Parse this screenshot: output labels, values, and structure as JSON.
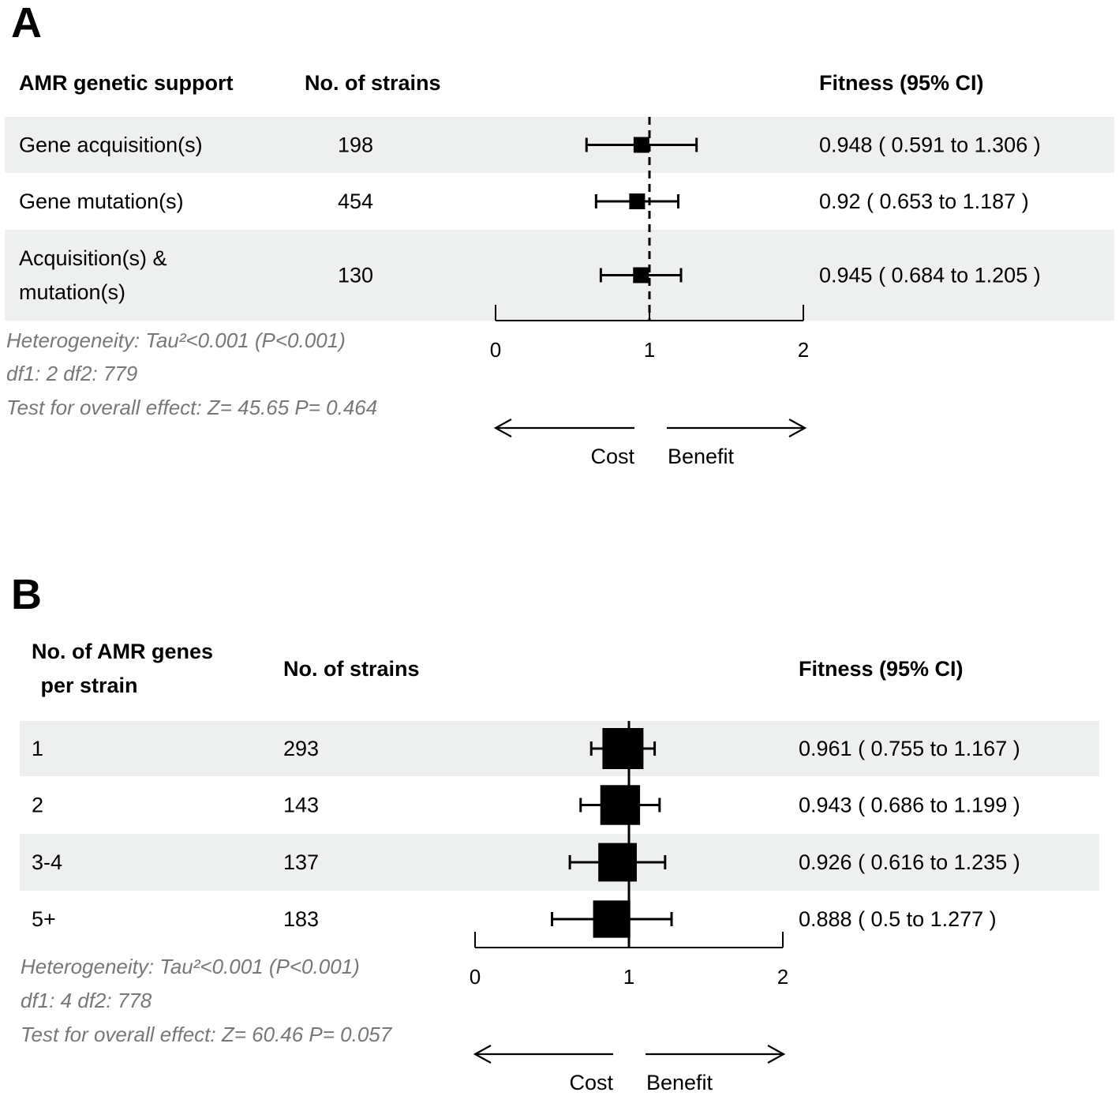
{
  "chart_data": [
    {
      "type": "forest",
      "panel": "A",
      "headers": {
        "group": "AMR genetic support",
        "n": "No. of strains",
        "estimate": "Fitness (95% CI)"
      },
      "rows": [
        {
          "label": [
            "Gene acquisition(s)"
          ],
          "n": "198",
          "estimate": 0.948,
          "lower": 0.591,
          "upper": 1.306,
          "ci_text": "0.948 ( 0.591  to  1.306 )",
          "shaded": true
        },
        {
          "label": [
            "Gene mutation(s)"
          ],
          "n": "454",
          "estimate": 0.92,
          "lower": 0.653,
          "upper": 1.187,
          "ci_text": "0.92 ( 0.653  to  1.187 )",
          "shaded": false
        },
        {
          "label": [
            "Acquisition(s) &",
            " mutation(s)"
          ],
          "n": "130",
          "estimate": 0.945,
          "lower": 0.684,
          "upper": 1.205,
          "ci_text": "0.945 ( 0.684  to  1.205 )",
          "shaded": true
        }
      ],
      "xlim": [
        0,
        2
      ],
      "ticks": [
        "0",
        "1",
        "2"
      ],
      "reference_line": 1,
      "reference_style": "dashed",
      "direction_labels": {
        "left": "Cost",
        "right": "Benefit"
      },
      "stats": [
        "Heterogeneity: Tau²<0.001 (P<0.001)",
        "df1: 2  df2: 779",
        "Test for overall effect: Z= 45.65  P= 0.464"
      ]
    },
    {
      "type": "forest",
      "panel": "B",
      "headers": {
        "group": [
          "No. of AMR genes",
          " per strain"
        ],
        "n": "No. of strains",
        "estimate": "Fitness (95% CI)"
      },
      "rows": [
        {
          "label": [
            "1"
          ],
          "n": "293",
          "estimate": 0.961,
          "lower": 0.755,
          "upper": 1.167,
          "ci_text": "0.961  ( 0.755  to  1.167 )",
          "weight": 1.0,
          "shaded": true
        },
        {
          "label": [
            "2"
          ],
          "n": "143",
          "estimate": 0.943,
          "lower": 0.686,
          "upper": 1.199,
          "ci_text": "0.943  ( 0.686  to  1.199 )",
          "weight": 0.9,
          "shaded": false
        },
        {
          "label": [
            "3-4"
          ],
          "n": "137",
          "estimate": 0.926,
          "lower": 0.616,
          "upper": 1.235,
          "ci_text": "0.926  ( 0.616  to  1.235 )",
          "weight": 0.8,
          "shaded": true
        },
        {
          "label": [
            "5+"
          ],
          "n": "183",
          "estimate": 0.888,
          "lower": 0.5,
          "upper": 1.277,
          "ci_text": "0.888  ( 0.5  to  1.277 )",
          "weight": 0.7,
          "shaded": false
        }
      ],
      "xlim": [
        0,
        2
      ],
      "ticks": [
        "0",
        "1",
        "2"
      ],
      "reference_line": 1,
      "reference_style": "solid",
      "direction_labels": {
        "left": "Cost",
        "right": "Benefit"
      },
      "stats": [
        "Heterogeneity: Tau²<0.001 (P<0.001)",
        "df1: 4  df2: 778",
        "Test for overall effect: Z= 60.46  P= 0.057"
      ]
    }
  ],
  "colors": {
    "row_shade": "#eef0ef",
    "ink": "#000000",
    "stat_text": "#777777"
  }
}
